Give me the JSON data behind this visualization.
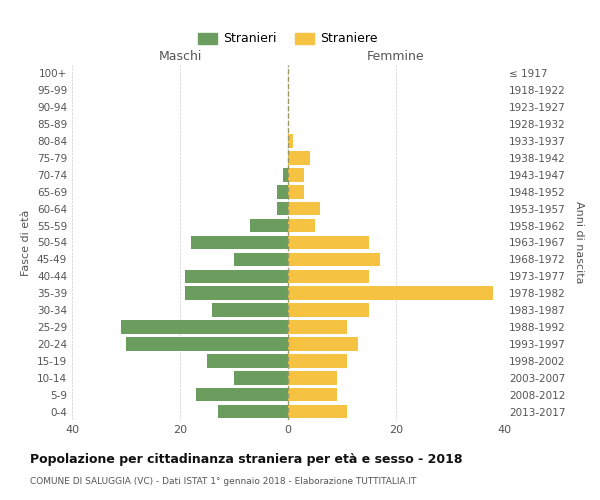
{
  "age_groups": [
    "100+",
    "95-99",
    "90-94",
    "85-89",
    "80-84",
    "75-79",
    "70-74",
    "65-69",
    "60-64",
    "55-59",
    "50-54",
    "45-49",
    "40-44",
    "35-39",
    "30-34",
    "25-29",
    "20-24",
    "15-19",
    "10-14",
    "5-9",
    "0-4"
  ],
  "birth_years": [
    "≤ 1917",
    "1918-1922",
    "1923-1927",
    "1928-1932",
    "1933-1937",
    "1938-1942",
    "1943-1947",
    "1948-1952",
    "1953-1957",
    "1958-1962",
    "1963-1967",
    "1968-1972",
    "1973-1977",
    "1978-1982",
    "1983-1987",
    "1988-1992",
    "1993-1997",
    "1998-2002",
    "2003-2007",
    "2008-2012",
    "2013-2017"
  ],
  "maschi": [
    0,
    0,
    0,
    0,
    0,
    0,
    1,
    2,
    2,
    7,
    18,
    10,
    19,
    19,
    14,
    31,
    30,
    15,
    10,
    17,
    13
  ],
  "femmine": [
    0,
    0,
    0,
    0,
    1,
    4,
    3,
    3,
    6,
    5,
    15,
    17,
    15,
    38,
    15,
    11,
    13,
    11,
    9,
    9,
    11
  ],
  "maschi_color": "#6b9e5e",
  "femmine_color": "#f5c242",
  "background_color": "#ffffff",
  "grid_color": "#cccccc",
  "title": "Popolazione per cittadinanza straniera per età e sesso - 2018",
  "subtitle": "COMUNE DI SALUGGIA (VC) - Dati ISTAT 1° gennaio 2018 - Elaborazione TUTTITALIA.IT",
  "ylabel_left": "Fasce di età",
  "ylabel_right": "Anni di nascita",
  "xlabel_left": "Maschi",
  "xlabel_right": "Femmine",
  "legend_maschi": "Stranieri",
  "legend_femmine": "Straniere",
  "xlim": 40,
  "bar_height": 0.8
}
